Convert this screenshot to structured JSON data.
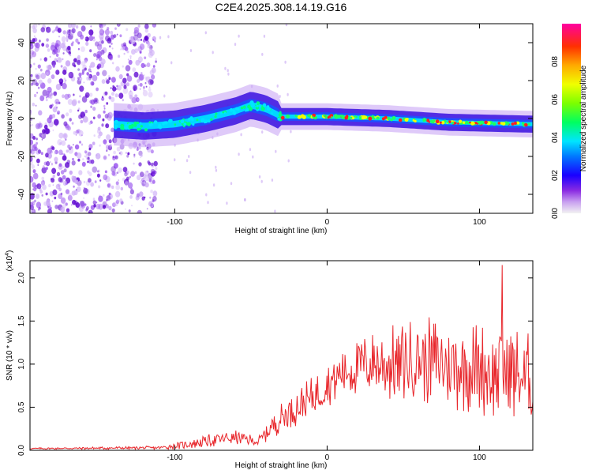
{
  "title": "C2E4.2025.308.14.19.G16",
  "colors": {
    "snr_line": "#e8262b",
    "frame": "#000000",
    "cloud": "#6a0fd6"
  },
  "chart_data": [
    {
      "id": "spectrogram",
      "type": "heatmap",
      "xlabel": "Height of straight line (km)",
      "ylabel": "Frequency (Hz)",
      "xlim": [
        -195,
        135
      ],
      "ylim": [
        -50,
        50
      ],
      "xticks": [
        -100,
        0,
        100
      ],
      "xtick_labels": [
        "-100",
        "0",
        "100"
      ],
      "yticks": [
        -40,
        -20,
        0,
        20,
        40
      ],
      "ytick_labels": [
        "-40",
        "-20",
        "0",
        "20",
        "40"
      ],
      "noise_region_km": [
        -195,
        -112
      ],
      "signal_start_km": -140,
      "signal_center_hz": [
        {
          "x": -140,
          "y": -3
        },
        {
          "x": -120,
          "y": -4
        },
        {
          "x": -100,
          "y": -3
        },
        {
          "x": -80,
          "y": 0
        },
        {
          "x": -60,
          "y": 4
        },
        {
          "x": -50,
          "y": 7
        },
        {
          "x": -40,
          "y": 5
        },
        {
          "x": -30,
          "y": 1
        },
        {
          "x": 0,
          "y": 1
        },
        {
          "x": 40,
          "y": 0
        },
        {
          "x": 80,
          "y": -2
        },
        {
          "x": 135,
          "y": -3
        }
      ],
      "colorbar": {
        "label": "Normalized spectral amplitude",
        "range": [
          0,
          1
        ],
        "ticks": [
          0.0,
          0.2,
          0.4,
          0.6,
          0.8
        ],
        "tick_labels": [
          "0.0",
          "0.2",
          "0.4",
          "0.6",
          "0.8"
        ]
      }
    },
    {
      "id": "snr",
      "type": "line",
      "xlabel": "Height of straight line (km)",
      "ylabel": "SNR (10 * v/v)",
      "y_multiplier_label": "(x10",
      "y_multiplier_exp": "4",
      "y_multiplier_close": ")",
      "xlim": [
        -195,
        135
      ],
      "ylim": [
        0,
        2.2
      ],
      "xticks": [
        -100,
        0,
        100
      ],
      "xtick_labels": [
        "-100",
        "0",
        "100"
      ],
      "yticks": [
        0.0,
        0.5,
        1.0,
        1.5,
        2.0
      ],
      "ytick_labels": [
        "0.0",
        "0.5",
        "1.0",
        "1.5",
        "2.0"
      ],
      "envelope": [
        {
          "x": -195,
          "mean": 0.02,
          "spread": 0.01
        },
        {
          "x": -110,
          "mean": 0.03,
          "spread": 0.02
        },
        {
          "x": -95,
          "mean": 0.06,
          "spread": 0.05
        },
        {
          "x": -75,
          "mean": 0.12,
          "spread": 0.08
        },
        {
          "x": -60,
          "mean": 0.15,
          "spread": 0.08
        },
        {
          "x": -45,
          "mean": 0.1,
          "spread": 0.06
        },
        {
          "x": -35,
          "mean": 0.3,
          "spread": 0.15
        },
        {
          "x": -25,
          "mean": 0.45,
          "spread": 0.2
        },
        {
          "x": -10,
          "mean": 0.6,
          "spread": 0.25
        },
        {
          "x": 0,
          "mean": 0.75,
          "spread": 0.25
        },
        {
          "x": 10,
          "mean": 0.9,
          "spread": 0.3
        },
        {
          "x": 25,
          "mean": 1.0,
          "spread": 0.35
        },
        {
          "x": 40,
          "mean": 1.0,
          "spread": 0.45
        },
        {
          "x": 60,
          "mean": 1.05,
          "spread": 0.5
        },
        {
          "x": 80,
          "mean": 1.0,
          "spread": 0.55
        },
        {
          "x": 100,
          "mean": 0.95,
          "spread": 0.55
        },
        {
          "x": 120,
          "mean": 0.9,
          "spread": 0.6
        },
        {
          "x": 135,
          "mean": 0.8,
          "spread": 0.55
        }
      ],
      "peak_value": 2.15,
      "peak_x": 115
    }
  ]
}
